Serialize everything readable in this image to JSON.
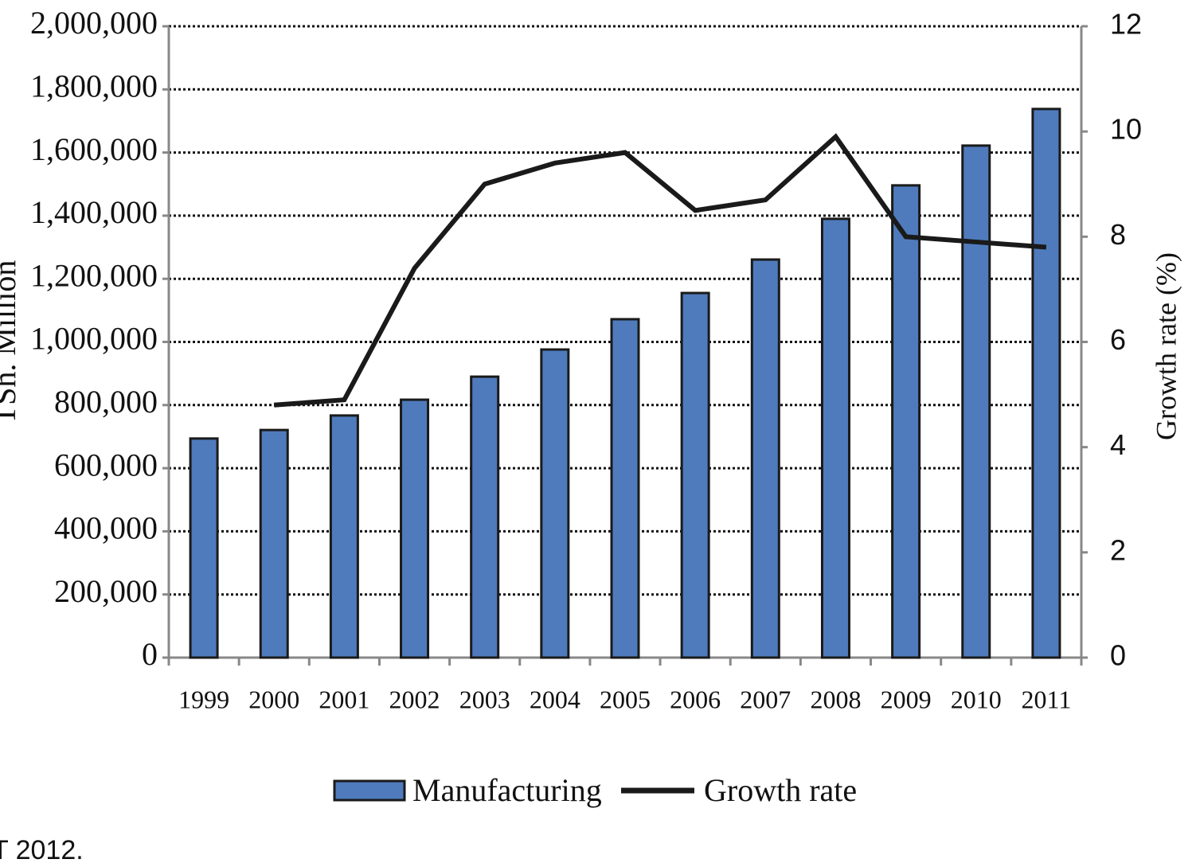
{
  "chart_data": {
    "type": "bar-line",
    "categories": [
      "1999",
      "2000",
      "2001",
      "2002",
      "2003",
      "2004",
      "2005",
      "2006",
      "2007",
      "2008",
      "2009",
      "2010",
      "2011"
    ],
    "series": [
      {
        "name": "Manufacturing",
        "type": "bar",
        "color": "#4f7bbc",
        "values": [
          694000,
          721000,
          767000,
          817000,
          890000,
          976000,
          1072000,
          1155000,
          1261000,
          1390000,
          1496000,
          1622000,
          1738000
        ]
      },
      {
        "name": "Growth rate",
        "type": "line",
        "axis": "y2",
        "color": "#1a1a1a",
        "values": [
          null,
          4.8,
          4.9,
          7.4,
          9.0,
          9.4,
          9.6,
          8.5,
          8.7,
          9.9,
          8.0,
          7.9,
          7.8
        ]
      }
    ],
    "ylabel": "TSh. Million",
    "y2label": "Growth rate (%)",
    "ylim": [
      0,
      2000000
    ],
    "yticks": [
      0,
      {
        "value": 200000,
        "label": "200,000"
      },
      {
        "value": 400000,
        "label": "400,000"
      },
      {
        "value": 600000,
        "label": "600,000"
      },
      {
        "value": 800000,
        "label": "800,000"
      },
      {
        "value": 1000000,
        "label": "1,000,000"
      },
      {
        "value": 1200000,
        "label": "1,200,000"
      },
      {
        "value": 1400000,
        "label": "1,400,000"
      },
      {
        "value": 1600000,
        "label": "1,600,000"
      },
      {
        "value": 1800000,
        "label": "1,800,000"
      },
      {
        "value": 2000000,
        "label": "2,000,000"
      }
    ],
    "y2lim": [
      0,
      12
    ],
    "y2ticks": [
      0,
      2,
      4,
      6,
      8,
      10,
      12
    ],
    "grid": true,
    "legend": "bottom",
    "note": "T 2012."
  }
}
